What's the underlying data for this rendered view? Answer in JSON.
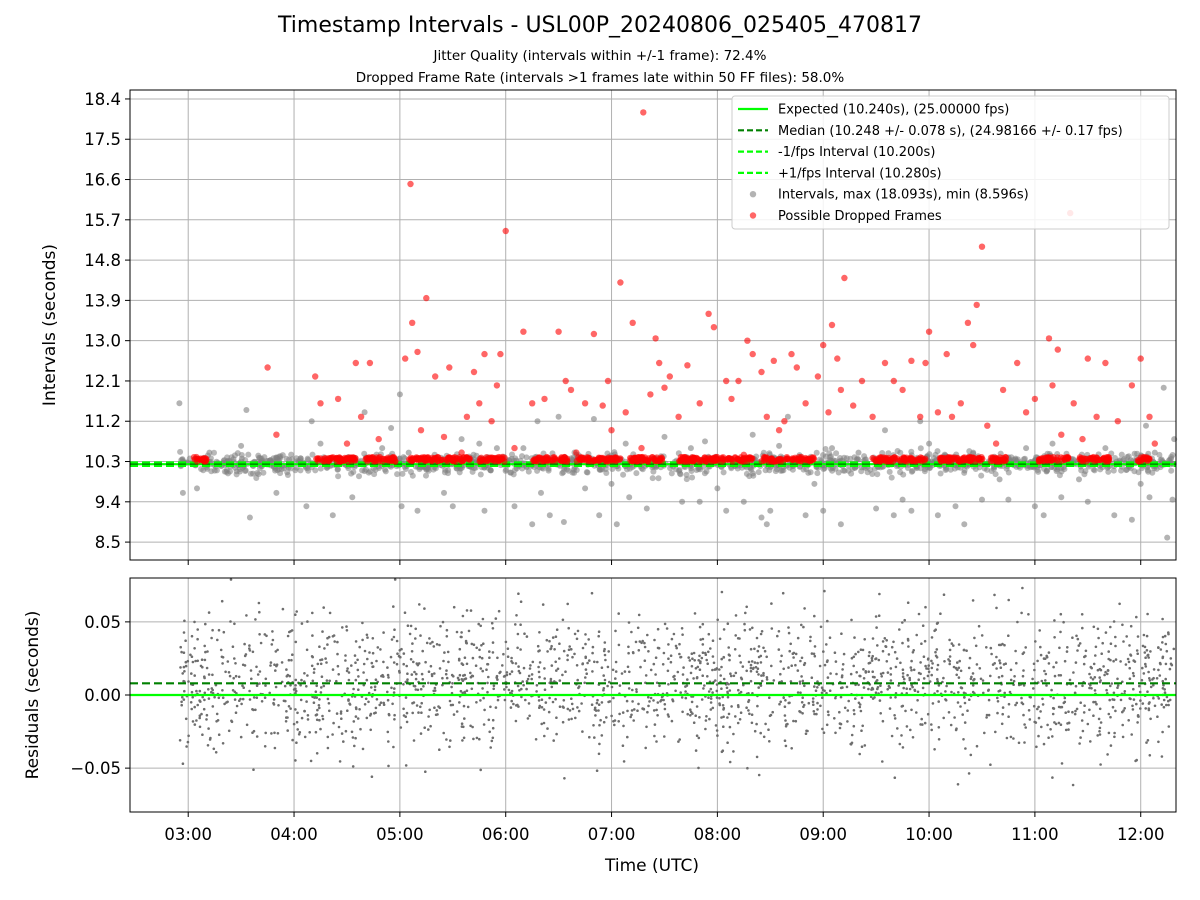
{
  "title": "Timestamp Intervals - USL00P_20240806_025405_470817",
  "subtitle_1": "Jitter Quality (intervals within +/-1 frame): 72.4%",
  "subtitle_2": "Dropped Frame Rate (intervals >1 frames late within 50 FF files): 58.0%",
  "colors": {
    "expected": "#00ff00",
    "median": "#008000",
    "interval_bounds": "#00ff00",
    "intervals": "#808080",
    "dropped": "#ff0000",
    "grid": "#b0b0b0"
  },
  "chart_data": [
    {
      "type": "scatter",
      "ylabel": "Intervals (seconds)",
      "xlabel": "",
      "x_axis_type": "time",
      "xlim": [
        "02:27",
        "12:20"
      ],
      "ylim": [
        8.1,
        18.6
      ],
      "yticks": [
        "8.5",
        "9.4",
        "10.3",
        "11.2",
        "12.1",
        "13.0",
        "13.9",
        "14.8",
        "15.7",
        "16.6",
        "17.5",
        "18.4"
      ],
      "xticks": [
        "03:00",
        "04:00",
        "05:00",
        "06:00",
        "07:00",
        "08:00",
        "09:00",
        "10:00",
        "11:00",
        "12:00"
      ],
      "grid": true,
      "legend_position": "top-right",
      "legend": [
        "Expected (10.240s), (25.00000 fps)",
        "Median (10.248 +/- 0.078 s), (24.98166 +/- 0.17 fps)",
        "-1/fps Interval (10.200s)",
        "+1/fps Interval (10.280s)",
        "Intervals, max (18.093s), min (8.596s)",
        "Possible Dropped Frames"
      ],
      "reference_lines": [
        {
          "name": "Expected",
          "y": 10.24,
          "style": "solid",
          "color": "#00ff00"
        },
        {
          "name": "Median",
          "y": 10.248,
          "style": "dashed",
          "color": "#008000"
        },
        {
          "name": "-1/fps Interval",
          "y": 10.2,
          "style": "dashed",
          "color": "#00ff00"
        },
        {
          "name": "+1/fps Interval",
          "y": 10.28,
          "style": "dashed",
          "color": "#00ff00"
        }
      ],
      "series": [
        {
          "name": "Intervals, max (18.093s), min (8.596s)",
          "style": "gray",
          "points": [
            [
              "02:55",
              11.6
            ],
            [
              "02:57",
              9.6
            ],
            [
              "03:05",
              9.7
            ],
            [
              "03:12",
              10.5
            ],
            [
              "03:30",
              10.65
            ],
            [
              "03:33",
              11.45
            ],
            [
              "03:35",
              9.05
            ],
            [
              "03:50",
              9.6
            ],
            [
              "04:07",
              9.3
            ],
            [
              "04:10",
              11.2
            ],
            [
              "04:15",
              10.7
            ],
            [
              "04:22",
              9.1
            ],
            [
              "04:33",
              9.5
            ],
            [
              "04:40",
              11.4
            ],
            [
              "04:50",
              10.6
            ],
            [
              "04:55",
              11.05
            ],
            [
              "05:00",
              11.8
            ],
            [
              "05:01",
              9.3
            ],
            [
              "05:05",
              10.5
            ],
            [
              "05:10",
              9.2
            ],
            [
              "05:25",
              9.6
            ],
            [
              "05:30",
              9.3
            ],
            [
              "05:35",
              10.8
            ],
            [
              "05:45",
              10.7
            ],
            [
              "05:48",
              9.2
            ],
            [
              "05:55",
              10.6
            ],
            [
              "06:05",
              9.3
            ],
            [
              "06:10",
              10.6
            ],
            [
              "06:15",
              8.9
            ],
            [
              "06:18",
              11.2
            ],
            [
              "06:20",
              9.6
            ],
            [
              "06:25",
              9.1
            ],
            [
              "06:30",
              11.3
            ],
            [
              "06:33",
              8.95
            ],
            [
              "06:40",
              10.45
            ],
            [
              "06:45",
              9.7
            ],
            [
              "06:50",
              11.25
            ],
            [
              "06:53",
              9.1
            ],
            [
              "07:00",
              9.8
            ],
            [
              "07:03",
              8.9
            ],
            [
              "07:08",
              10.7
            ],
            [
              "07:10",
              9.5
            ],
            [
              "07:20",
              9.25
            ],
            [
              "07:30",
              10.85
            ],
            [
              "07:40",
              9.4
            ],
            [
              "07:45",
              10.6
            ],
            [
              "07:50",
              9.4
            ],
            [
              "07:53",
              10.75
            ],
            [
              "08:00",
              9.7
            ],
            [
              "08:05",
              9.2
            ],
            [
              "08:10",
              10.2
            ],
            [
              "08:15",
              9.4
            ],
            [
              "08:20",
              10.9
            ],
            [
              "08:25",
              9.05
            ],
            [
              "08:28",
              8.9
            ],
            [
              "08:30",
              9.2
            ],
            [
              "08:35",
              10.65
            ],
            [
              "08:40",
              11.3
            ],
            [
              "08:50",
              9.1
            ],
            [
              "08:55",
              9.8
            ],
            [
              "09:00",
              9.2
            ],
            [
              "09:05",
              10.6
            ],
            [
              "09:10",
              8.9
            ],
            [
              "09:20",
              10.5
            ],
            [
              "09:30",
              9.25
            ],
            [
              "09:35",
              11.0
            ],
            [
              "09:40",
              9.1
            ],
            [
              "09:45",
              9.45
            ],
            [
              "09:50",
              9.2
            ],
            [
              "09:55",
              11.2
            ],
            [
              "10:00",
              10.7
            ],
            [
              "10:05",
              9.1
            ],
            [
              "10:08",
              10.35
            ],
            [
              "10:15",
              9.3
            ],
            [
              "10:20",
              8.9
            ],
            [
              "10:25",
              10.5
            ],
            [
              "10:30",
              9.45
            ],
            [
              "10:40",
              9.9
            ],
            [
              "10:45",
              9.45
            ],
            [
              "10:55",
              10.6
            ],
            [
              "11:00",
              9.3
            ],
            [
              "11:05",
              9.1
            ],
            [
              "11:10",
              10.7
            ],
            [
              "11:15",
              9.5
            ],
            [
              "11:25",
              9.9
            ],
            [
              "11:30",
              9.4
            ],
            [
              "11:40",
              10.6
            ],
            [
              "11:45",
              9.1
            ],
            [
              "11:55",
              9.0
            ],
            [
              "12:00",
              9.8
            ],
            [
              "12:03",
              11.1
            ],
            [
              "12:05",
              9.5
            ],
            [
              "12:08",
              10.5
            ],
            [
              "12:13",
              11.95
            ],
            [
              "12:15",
              8.6
            ],
            [
              "12:18",
              9.45
            ],
            [
              "12:19",
              10.8
            ]
          ]
        },
        {
          "name": "Possible Dropped Frames",
          "style": "red",
          "points": [
            [
              "03:45",
              12.4
            ],
            [
              "03:50",
              10.9
            ],
            [
              "04:12",
              12.2
            ],
            [
              "04:15",
              11.6
            ],
            [
              "04:20",
              10.35
            ],
            [
              "04:25",
              11.7
            ],
            [
              "04:30",
              10.7
            ],
            [
              "04:35",
              12.5
            ],
            [
              "04:38",
              11.3
            ],
            [
              "04:43",
              12.5
            ],
            [
              "04:48",
              10.8
            ],
            [
              "05:03",
              12.6
            ],
            [
              "05:06",
              16.5
            ],
            [
              "05:07",
              13.4
            ],
            [
              "05:10",
              12.75
            ],
            [
              "05:12",
              11.0
            ],
            [
              "05:15",
              13.95
            ],
            [
              "05:20",
              12.2
            ],
            [
              "05:25",
              10.85
            ],
            [
              "05:28",
              12.4
            ],
            [
              "05:35",
              10.5
            ],
            [
              "05:38",
              11.3
            ],
            [
              "05:42",
              12.3
            ],
            [
              "05:45",
              11.6
            ],
            [
              "05:48",
              12.7
            ],
            [
              "05:52",
              11.2
            ],
            [
              "05:55",
              12.0
            ],
            [
              "05:57",
              12.7
            ],
            [
              "05:60",
              15.45
            ],
            [
              "06:05",
              10.6
            ],
            [
              "06:10",
              13.2
            ],
            [
              "06:15",
              11.6
            ],
            [
              "06:22",
              11.7
            ],
            [
              "06:30",
              13.2
            ],
            [
              "06:34",
              12.1
            ],
            [
              "06:37",
              11.9
            ],
            [
              "06:40",
              10.5
            ],
            [
              "06:45",
              11.6
            ],
            [
              "06:50",
              13.15
            ],
            [
              "06:55",
              11.55
            ],
            [
              "06:58",
              12.1
            ],
            [
              "07:00",
              11.0
            ],
            [
              "07:05",
              14.3
            ],
            [
              "07:08",
              11.4
            ],
            [
              "07:12",
              13.4
            ],
            [
              "07:17",
              10.6
            ],
            [
              "07:18",
              18.1
            ],
            [
              "07:22",
              11.8
            ],
            [
              "07:25",
              13.05
            ],
            [
              "07:27",
              12.5
            ],
            [
              "07:30",
              11.95
            ],
            [
              "07:33",
              12.2
            ],
            [
              "07:38",
              11.3
            ],
            [
              "07:43",
              12.45
            ],
            [
              "07:50",
              11.6
            ],
            [
              "07:55",
              13.6
            ],
            [
              "07:58",
              13.3
            ],
            [
              "08:05",
              12.1
            ],
            [
              "08:08",
              11.7
            ],
            [
              "08:12",
              12.1
            ],
            [
              "08:15",
              10.45
            ],
            [
              "08:17",
              13.0
            ],
            [
              "08:20",
              12.7
            ],
            [
              "08:25",
              12.3
            ],
            [
              "08:28",
              11.3
            ],
            [
              "08:32",
              12.55
            ],
            [
              "08:35",
              11.0
            ],
            [
              "08:38",
              11.2
            ],
            [
              "08:42",
              12.7
            ],
            [
              "08:45",
              12.4
            ],
            [
              "08:50",
              11.6
            ],
            [
              "08:57",
              12.2
            ],
            [
              "09:00",
              12.9
            ],
            [
              "09:03",
              11.4
            ],
            [
              "09:05",
              13.35
            ],
            [
              "09:08",
              12.6
            ],
            [
              "09:10",
              11.9
            ],
            [
              "09:12",
              14.4
            ],
            [
              "09:17",
              11.55
            ],
            [
              "09:22",
              12.1
            ],
            [
              "09:28",
              11.3
            ],
            [
              "09:35",
              12.5
            ],
            [
              "09:40",
              12.1
            ],
            [
              "09:45",
              11.9
            ],
            [
              "09:50",
              12.55
            ],
            [
              "09:55",
              11.3
            ],
            [
              "09:58",
              12.5
            ],
            [
              "10:00",
              13.2
            ],
            [
              "10:05",
              11.4
            ],
            [
              "10:10",
              12.7
            ],
            [
              "10:13",
              11.3
            ],
            [
              "10:18",
              11.6
            ],
            [
              "10:22",
              13.4
            ],
            [
              "10:25",
              12.9
            ],
            [
              "10:27",
              13.8
            ],
            [
              "10:30",
              15.1
            ],
            [
              "10:33",
              11.1
            ],
            [
              "10:38",
              10.7
            ],
            [
              "10:42",
              11.9
            ],
            [
              "10:50",
              12.5
            ],
            [
              "10:55",
              11.4
            ],
            [
              "11:00",
              11.7
            ],
            [
              "11:08",
              13.05
            ],
            [
              "11:10",
              12.0
            ],
            [
              "11:13",
              12.8
            ],
            [
              "11:15",
              10.9
            ],
            [
              "11:20",
              15.85
            ],
            [
              "11:22",
              11.6
            ],
            [
              "11:27",
              10.8
            ],
            [
              "11:30",
              12.6
            ],
            [
              "11:35",
              11.3
            ],
            [
              "11:40",
              12.5
            ],
            [
              "11:47",
              11.2
            ],
            [
              "11:55",
              12.0
            ],
            [
              "12:00",
              12.6
            ],
            [
              "12:05",
              11.3
            ],
            [
              "12:08",
              10.7
            ]
          ]
        }
      ]
    },
    {
      "type": "scatter",
      "ylabel": "Residuals (seconds)",
      "xlabel": "Time (UTC)",
      "x_axis_type": "time",
      "xlim": [
        "02:27",
        "12:20"
      ],
      "ylim": [
        -0.08,
        0.08
      ],
      "yticks": [
        "0.05",
        "0.00",
        "−0.05"
      ],
      "xticks": [
        "03:00",
        "04:00",
        "05:00",
        "06:00",
        "07:00",
        "08:00",
        "09:00",
        "10:00",
        "11:00",
        "12:00"
      ],
      "grid": true,
      "reference_lines": [
        {
          "name": "Expected",
          "y": 0.0,
          "style": "solid",
          "color": "#00ff00"
        },
        {
          "name": "Median",
          "y": 0.008,
          "style": "dashed",
          "color": "#008000"
        }
      ],
      "series": [
        {
          "name": "Residuals",
          "data_range": [
            -0.08,
            0.08
          ],
          "time_range": [
            "02:55",
            "12:19"
          ],
          "approx_std": 0.023
        }
      ]
    }
  ]
}
